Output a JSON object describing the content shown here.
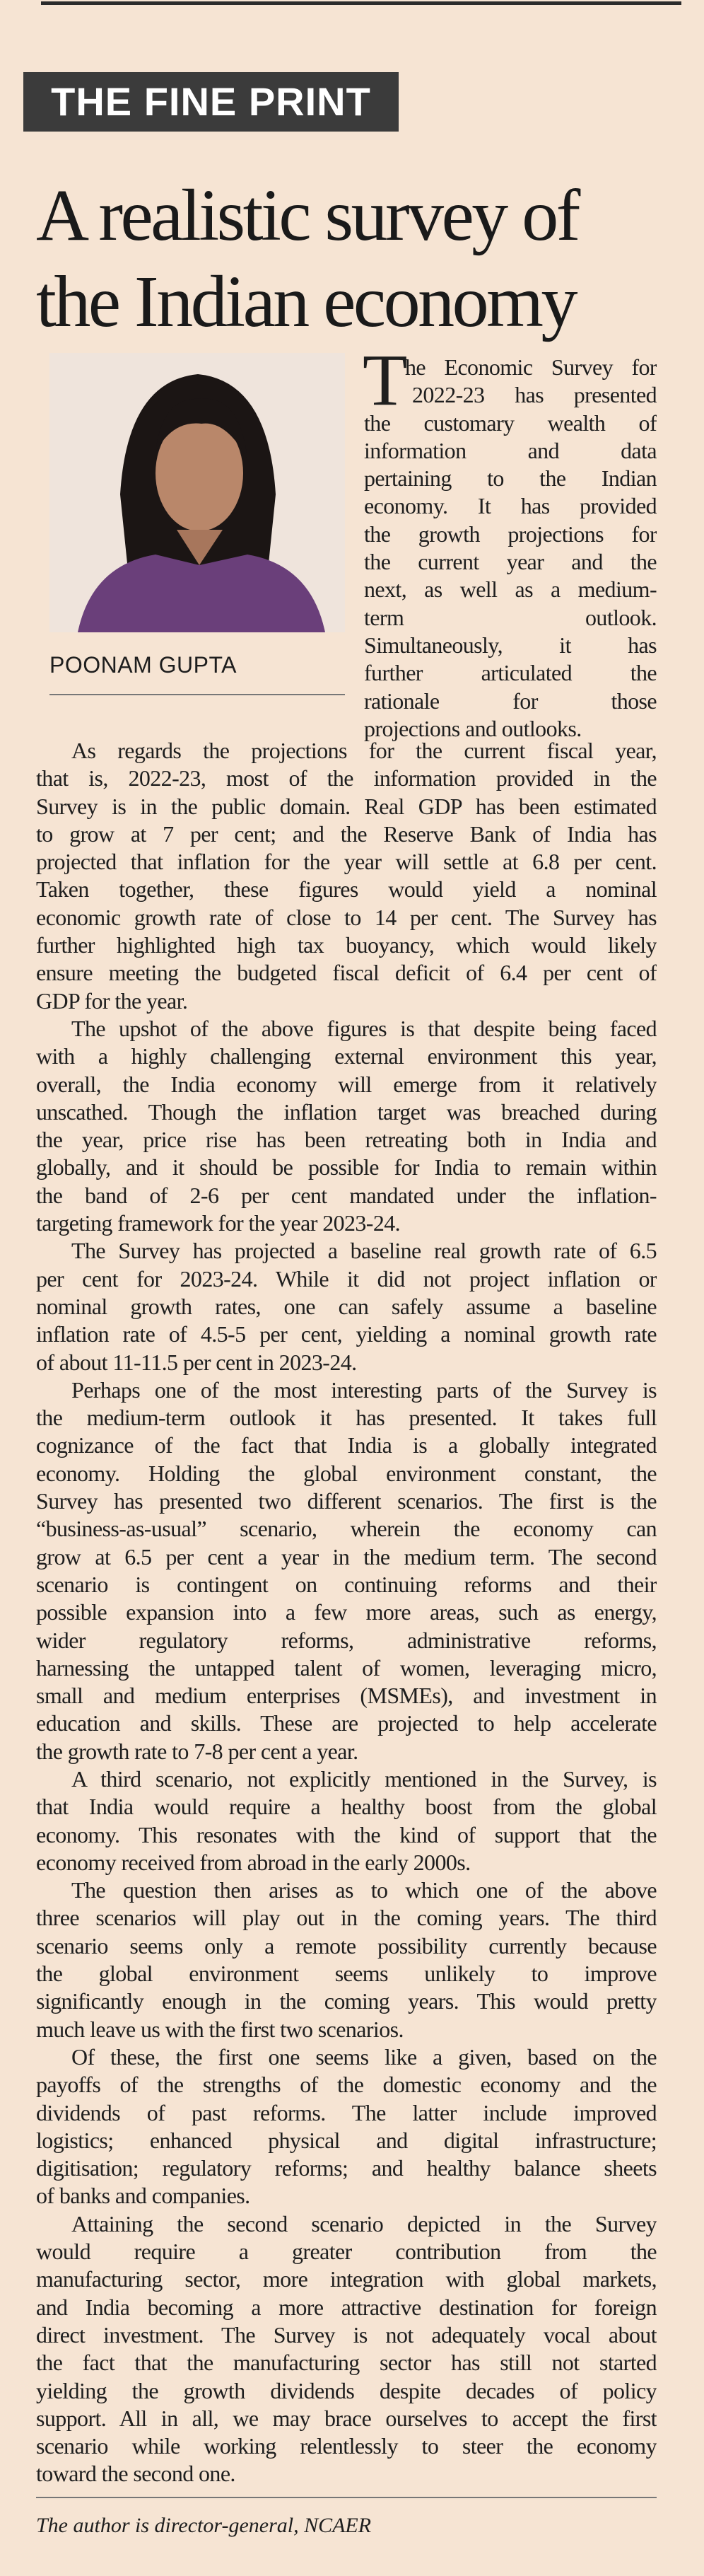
{
  "section_label": "THE FINE PRINT",
  "title": [
    "A realistic survey of",
    "the Indian economy"
  ],
  "author": "POONAM GUPTA",
  "intro": {
    "drop_cap": "T",
    "lines": [
      "he Economic Survey for",
      "2022-23 has presented",
      "the customary wealth of",
      "information and data",
      "pertaining to the Indian",
      "economy. It has provided",
      "the growth projections for",
      "the current year and the",
      "next, as well as a medium-",
      "term outlook.",
      "Simultaneously, it has",
      "further articulated the",
      "rationale for those",
      "projections and outlooks."
    ]
  },
  "paragraphs": [
    [
      "As regards the projections for the current fiscal year,",
      "that is, 2022-23, most of the information provided in the",
      "Survey is in the public domain. Real GDP has been estimated",
      "to grow at 7 per cent; and the Reserve Bank of India has",
      "projected that inflation for the year will settle at 6.8 per cent.",
      "Taken together, these figures would yield a nominal",
      "economic growth rate of close to 14 per cent. The Survey has",
      "further highlighted high tax buoyancy, which would likely",
      "ensure meeting the budgeted fiscal deficit of 6.4 per cent of",
      "GDP for the year."
    ],
    [
      "The upshot of the above figures is that despite being faced",
      "with a highly challenging external environment this year,",
      "overall, the India economy will emerge from it relatively",
      "unscathed. Though the inflation target was breached during",
      "the year, price rise has been retreating both in India and",
      "globally, and it should be possible for India to remain within",
      "the band of 2-6 per cent mandated under the inflation-",
      "targeting framework for the year 2023-24."
    ],
    [
      "The Survey has projected a baseline real growth rate of 6.5",
      "per cent for 2023-24. While it did not project inflation or",
      "nominal growth rates, one can safely assume a baseline",
      "inflation rate of 4.5-5 per cent, yielding a nominal growth rate",
      "of about 11-11.5 per cent in 2023-24."
    ],
    [
      "Perhaps one of the most interesting parts of the Survey is",
      "the medium-term outlook it has presented. It takes full",
      "cognizance of the fact that India is a globally integrated",
      "economy. Holding the global environment constant, the",
      "Survey has presented two different scenarios. The first is the",
      "“business-as-usual” scenario, wherein the economy can",
      "grow at 6.5 per cent a year in the medium term. The second",
      "scenario is contingent on continuing reforms and their",
      "possible expansion into a few more areas, such as energy,",
      "wider regulatory reforms, administrative reforms,",
      "harnessing the untapped talent of women, leveraging micro,",
      "small and medium enterprises (MSMEs), and investment in",
      "education and skills. These are projected to help accelerate",
      "the growth rate to 7-8 per cent a year."
    ],
    [
      "A third scenario, not explicitly mentioned in the Survey, is",
      "that India would require a healthy boost from the global",
      "economy. This resonates with the kind of support that the",
      "economy received from abroad in the early 2000s."
    ],
    [
      "The question then arises as to which one of the above",
      "three scenarios will play out in the coming years. The third",
      "scenario seems only a remote possibility currently because",
      "the global environment seems unlikely to improve",
      "significantly enough in the coming years. This would pretty",
      "much leave us with the first two scenarios."
    ],
    [
      "Of these, the first one seems like a given, based on the",
      "payoffs of the strengths of the domestic economy and the",
      "dividends of past reforms. The latter include improved",
      "logistics; enhanced physical and digital infrastructure;",
      "digitisation; regulatory reforms; and healthy balance sheets",
      "of banks and companies."
    ],
    [
      "Attaining the second scenario depicted in the Survey",
      "would require a greater contribution from the",
      "manufacturing sector, more integration with global markets,",
      "and India becoming a more attractive destination for foreign",
      "direct investment. The Survey is not adequately vocal about",
      "the fact that the manufacturing sector has still not started",
      "yielding the growth dividends despite decades of policy",
      "support. All in all, we may brace ourselves to accept the first",
      "scenario while working relentlessly to steer the economy",
      "toward the second one."
    ]
  ],
  "footer": "The author is director-general, NCAER"
}
